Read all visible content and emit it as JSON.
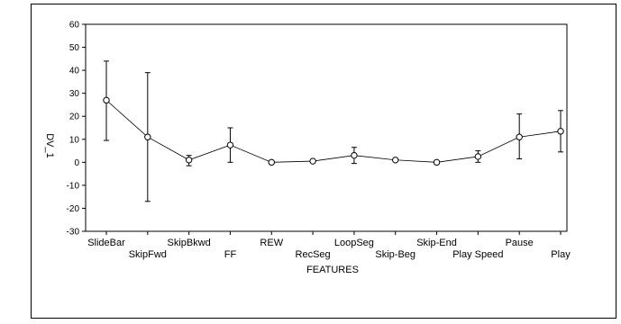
{
  "chart_data": {
    "type": "line",
    "title": "",
    "xlabel": "FEATURES",
    "ylabel": "DV_1",
    "ylim": [
      -30,
      60
    ],
    "yticks": [
      60,
      50,
      40,
      30,
      20,
      10,
      0,
      -10,
      -20,
      -30
    ],
    "grid": false,
    "categories": [
      "SlideBar",
      "SkipFwd",
      "SkipBkwd",
      "FF",
      "REW",
      "RecSeg",
      "LoopSeg",
      "Skip-Beg",
      "Skip-End",
      "Play Speed",
      "Pause",
      "Play"
    ],
    "series": [
      {
        "name": "",
        "values": [
          27,
          11,
          1,
          7.5,
          0,
          0.5,
          3,
          1,
          0,
          2.5,
          11,
          13.5
        ],
        "err_low": [
          9.5,
          -17,
          -1.5,
          0,
          0,
          0,
          -0.5,
          1,
          0,
          0,
          1.5,
          4.5
        ],
        "err_high": [
          44,
          39,
          3,
          15,
          0,
          0.5,
          6.5,
          1,
          0,
          5,
          21,
          22.5
        ]
      }
    ]
  }
}
